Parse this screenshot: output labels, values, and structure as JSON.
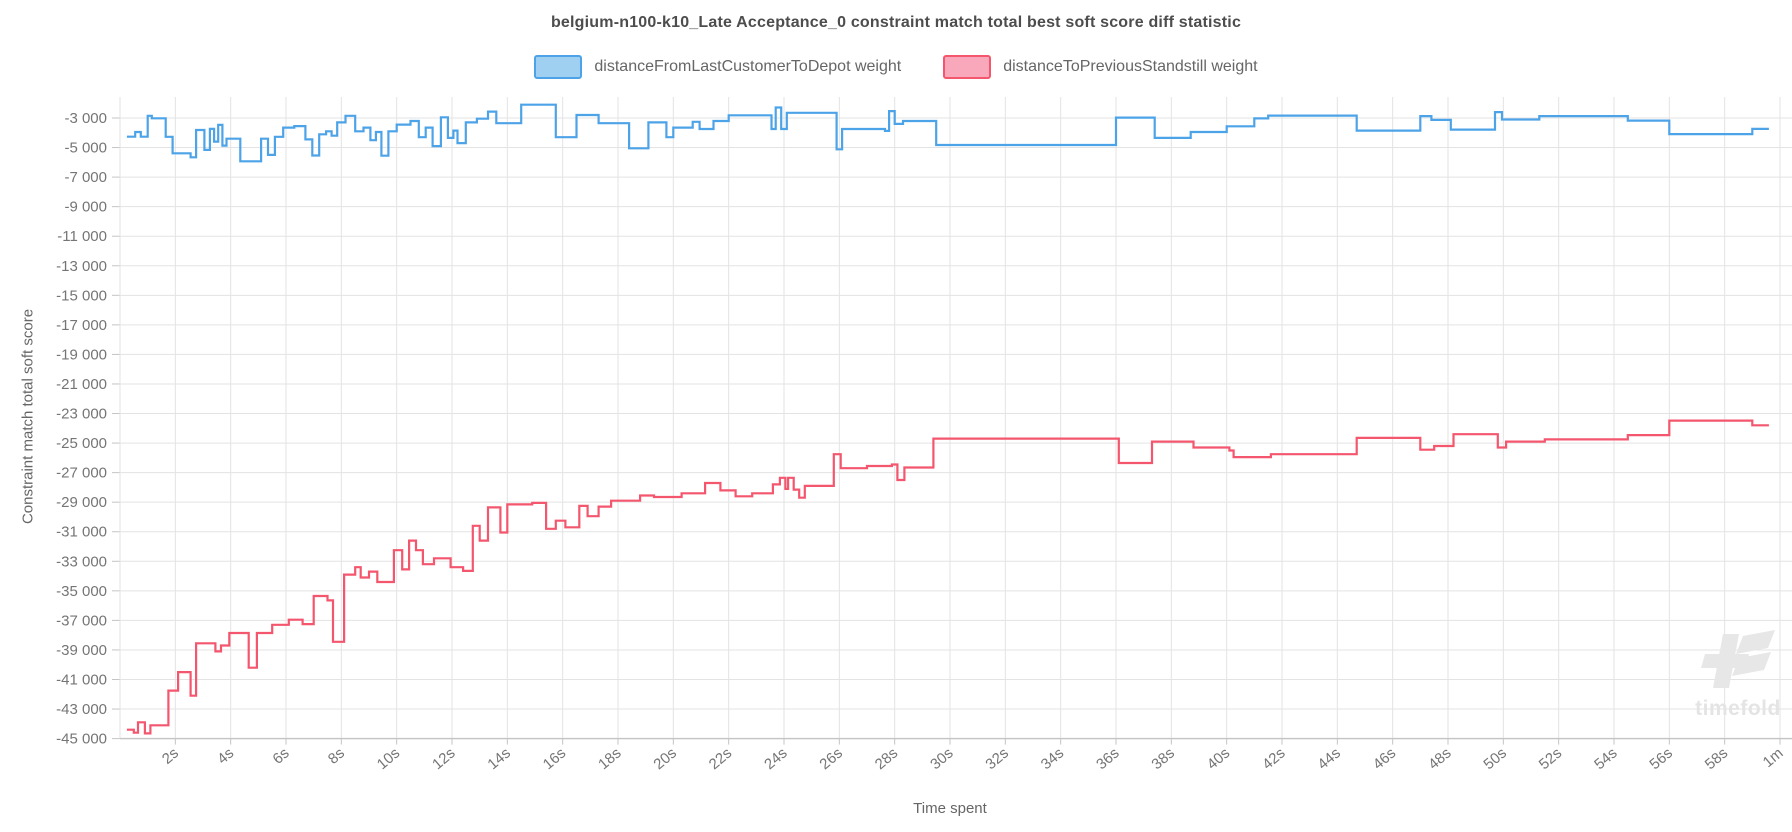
{
  "title": "belgium-n100-k10_Late Acceptance_0 constraint match total best soft score diff statistic",
  "legend": {
    "items": [
      {
        "label": "distanceFromLastCustomerToDepot weight",
        "fill": "#9fd0f2",
        "stroke": "#4da3e8"
      },
      {
        "label": "distanceToPreviousStandstill weight",
        "fill": "#f9a8bc",
        "stroke": "#f4566e"
      }
    ]
  },
  "axes": {
    "x_label": "Time spent",
    "y_label": "Constraint match total soft score",
    "x_ticks": [
      {
        "t": 2,
        "label": "2s"
      },
      {
        "t": 4,
        "label": "4s"
      },
      {
        "t": 6,
        "label": "6s"
      },
      {
        "t": 8,
        "label": "8s"
      },
      {
        "t": 10,
        "label": "10s"
      },
      {
        "t": 12,
        "label": "12s"
      },
      {
        "t": 14,
        "label": "14s"
      },
      {
        "t": 16,
        "label": "16s"
      },
      {
        "t": 18,
        "label": "18s"
      },
      {
        "t": 20,
        "label": "20s"
      },
      {
        "t": 22,
        "label": "22s"
      },
      {
        "t": 24,
        "label": "24s"
      },
      {
        "t": 26,
        "label": "26s"
      },
      {
        "t": 28,
        "label": "28s"
      },
      {
        "t": 30,
        "label": "30s"
      },
      {
        "t": 32,
        "label": "32s"
      },
      {
        "t": 34,
        "label": "34s"
      },
      {
        "t": 36,
        "label": "36s"
      },
      {
        "t": 38,
        "label": "38s"
      },
      {
        "t": 40,
        "label": "40s"
      },
      {
        "t": 42,
        "label": "42s"
      },
      {
        "t": 44,
        "label": "44s"
      },
      {
        "t": 46,
        "label": "46s"
      },
      {
        "t": 48,
        "label": "48s"
      },
      {
        "t": 50,
        "label": "50s"
      },
      {
        "t": 52,
        "label": "52s"
      },
      {
        "t": 54,
        "label": "54s"
      },
      {
        "t": 56,
        "label": "56s"
      },
      {
        "t": 58,
        "label": "58s"
      },
      {
        "t": 60,
        "label": "1m"
      }
    ],
    "y_ticks": [
      {
        "v": -3000,
        "label": "-3 000"
      },
      {
        "v": -5000,
        "label": "-5 000"
      },
      {
        "v": -7000,
        "label": "-7 000"
      },
      {
        "v": -9000,
        "label": "-9 000"
      },
      {
        "v": -11000,
        "label": "-11 000"
      },
      {
        "v": -13000,
        "label": "-13 000"
      },
      {
        "v": -15000,
        "label": "-15 000"
      },
      {
        "v": -17000,
        "label": "-17 000"
      },
      {
        "v": -19000,
        "label": "-19 000"
      },
      {
        "v": -21000,
        "label": "-21 000"
      },
      {
        "v": -23000,
        "label": "-23 000"
      },
      {
        "v": -25000,
        "label": "-25 000"
      },
      {
        "v": -27000,
        "label": "-27 000"
      },
      {
        "v": -29000,
        "label": "-29 000"
      },
      {
        "v": -31000,
        "label": "-31 000"
      },
      {
        "v": -33000,
        "label": "-33 000"
      },
      {
        "v": -35000,
        "label": "-35 000"
      },
      {
        "v": -37000,
        "label": "-37 000"
      },
      {
        "v": -39000,
        "label": "-39 000"
      },
      {
        "v": -41000,
        "label": "-41 000"
      },
      {
        "v": -43000,
        "label": "-43 000"
      },
      {
        "v": -45000,
        "label": "-45 000"
      }
    ]
  },
  "watermark": {
    "text": "timefold"
  },
  "colors": {
    "grid": "#e3e3e3",
    "axis": "#c4c4c4",
    "tick_text": "#757575",
    "blue_line": "#4da3e8",
    "pink_line": "#f4566e",
    "watermark": "#e7e7e7"
  },
  "chart_data": {
    "type": "line",
    "step": true,
    "title": "belgium-n100-k10_Late Acceptance_0 constraint match total best soft score diff statistic",
    "xlabel": "Time spent",
    "ylabel": "Constraint match total soft score",
    "x_unit": "seconds",
    "xlim": [
      0,
      60.5
    ],
    "ylim": [
      -45700,
      -1900
    ],
    "grid": true,
    "legend_position": "top-center",
    "t_end": 59.6,
    "series": [
      {
        "name": "distanceFromLastCustomerToDepot weight",
        "color": "#4da3e8",
        "points": [
          [
            0.25,
            -4265
          ],
          [
            0.55,
            -3950
          ],
          [
            0.75,
            -4265
          ],
          [
            1.0,
            -2850
          ],
          [
            1.15,
            -3020
          ],
          [
            1.65,
            -4270
          ],
          [
            1.9,
            -5390
          ],
          [
            2.55,
            -5660
          ],
          [
            2.75,
            -3810
          ],
          [
            3.05,
            -5160
          ],
          [
            3.25,
            -3740
          ],
          [
            3.4,
            -4600
          ],
          [
            3.55,
            -3470
          ],
          [
            3.7,
            -4870
          ],
          [
            3.85,
            -4400
          ],
          [
            4.35,
            -5930
          ],
          [
            5.1,
            -4400
          ],
          [
            5.35,
            -5500
          ],
          [
            5.6,
            -4270
          ],
          [
            5.9,
            -3650
          ],
          [
            6.3,
            -3550
          ],
          [
            6.7,
            -4450
          ],
          [
            6.95,
            -5540
          ],
          [
            7.2,
            -4100
          ],
          [
            7.45,
            -3900
          ],
          [
            7.65,
            -4200
          ],
          [
            7.85,
            -3300
          ],
          [
            8.15,
            -2850
          ],
          [
            8.5,
            -3900
          ],
          [
            8.8,
            -3650
          ],
          [
            9.05,
            -4500
          ],
          [
            9.25,
            -3950
          ],
          [
            9.45,
            -5550
          ],
          [
            9.7,
            -3900
          ],
          [
            10.0,
            -3450
          ],
          [
            10.5,
            -3200
          ],
          [
            10.8,
            -4300
          ],
          [
            11.05,
            -3650
          ],
          [
            11.3,
            -4900
          ],
          [
            11.6,
            -2950
          ],
          [
            11.85,
            -4350
          ],
          [
            12.05,
            -3850
          ],
          [
            12.2,
            -4700
          ],
          [
            12.5,
            -3300
          ],
          [
            12.9,
            -3050
          ],
          [
            13.3,
            -2570
          ],
          [
            13.6,
            -3350
          ],
          [
            14.5,
            -2100
          ],
          [
            15.75,
            -4300
          ],
          [
            16.5,
            -2800
          ],
          [
            17.3,
            -3350
          ],
          [
            18.4,
            -5050
          ],
          [
            19.1,
            -3300
          ],
          [
            19.75,
            -4300
          ],
          [
            20.0,
            -3650
          ],
          [
            20.7,
            -3260
          ],
          [
            20.95,
            -3745
          ],
          [
            21.45,
            -3200
          ],
          [
            22.0,
            -2820
          ],
          [
            23.55,
            -3745
          ],
          [
            23.7,
            -2290
          ],
          [
            23.9,
            -3745
          ],
          [
            24.1,
            -2650
          ],
          [
            25.9,
            -5120
          ],
          [
            26.1,
            -3745
          ],
          [
            27.65,
            -3870
          ],
          [
            27.8,
            -2530
          ],
          [
            28.0,
            -3400
          ],
          [
            28.3,
            -3200
          ],
          [
            29.5,
            -4830
          ],
          [
            36.0,
            -2970
          ],
          [
            37.4,
            -4350
          ],
          [
            38.7,
            -3945
          ],
          [
            40.0,
            -3560
          ],
          [
            41.0,
            -3030
          ],
          [
            41.5,
            -2840
          ],
          [
            44.7,
            -3855
          ],
          [
            47.0,
            -2870
          ],
          [
            47.4,
            -3130
          ],
          [
            48.1,
            -3785
          ],
          [
            49.7,
            -2600
          ],
          [
            49.95,
            -3100
          ],
          [
            51.3,
            -2870
          ],
          [
            54.5,
            -3175
          ],
          [
            56.0,
            -4090
          ],
          [
            59.0,
            -3735
          ]
        ]
      },
      {
        "name": "distanceToPreviousStandstill weight",
        "color": "#f4566e",
        "points": [
          [
            0.25,
            -44400
          ],
          [
            0.5,
            -44600
          ],
          [
            0.65,
            -43900
          ],
          [
            0.9,
            -44650
          ],
          [
            1.1,
            -44100
          ],
          [
            1.75,
            -41750
          ],
          [
            2.1,
            -40500
          ],
          [
            2.55,
            -42100
          ],
          [
            2.75,
            -38550
          ],
          [
            3.45,
            -39100
          ],
          [
            3.65,
            -38700
          ],
          [
            3.95,
            -37850
          ],
          [
            4.65,
            -40200
          ],
          [
            4.95,
            -37850
          ],
          [
            5.5,
            -37300
          ],
          [
            6.1,
            -36950
          ],
          [
            6.6,
            -37250
          ],
          [
            7.0,
            -35350
          ],
          [
            7.5,
            -35650
          ],
          [
            7.7,
            -38450
          ],
          [
            8.1,
            -33900
          ],
          [
            8.5,
            -33400
          ],
          [
            8.7,
            -34100
          ],
          [
            9.0,
            -33700
          ],
          [
            9.3,
            -34400
          ],
          [
            9.9,
            -32250
          ],
          [
            10.2,
            -33550
          ],
          [
            10.45,
            -31600
          ],
          [
            10.7,
            -32250
          ],
          [
            10.95,
            -33200
          ],
          [
            11.35,
            -32800
          ],
          [
            11.95,
            -33400
          ],
          [
            12.4,
            -33650
          ],
          [
            12.75,
            -30600
          ],
          [
            13.0,
            -31600
          ],
          [
            13.3,
            -29350
          ],
          [
            13.75,
            -31050
          ],
          [
            14.0,
            -29150
          ],
          [
            14.9,
            -29050
          ],
          [
            15.4,
            -30800
          ],
          [
            15.75,
            -30250
          ],
          [
            16.1,
            -30700
          ],
          [
            16.6,
            -29250
          ],
          [
            16.9,
            -29950
          ],
          [
            17.3,
            -29300
          ],
          [
            17.75,
            -28900
          ],
          [
            18.8,
            -28550
          ],
          [
            19.3,
            -28650
          ],
          [
            20.3,
            -28400
          ],
          [
            21.15,
            -27700
          ],
          [
            21.7,
            -28200
          ],
          [
            22.25,
            -28600
          ],
          [
            22.85,
            -28400
          ],
          [
            23.6,
            -27800
          ],
          [
            23.85,
            -27350
          ],
          [
            24.05,
            -28100
          ],
          [
            24.15,
            -27350
          ],
          [
            24.35,
            -28150
          ],
          [
            24.55,
            -28700
          ],
          [
            24.75,
            -27900
          ],
          [
            25.8,
            -25750
          ],
          [
            26.05,
            -26700
          ],
          [
            27.0,
            -26550
          ],
          [
            27.9,
            -26450
          ],
          [
            28.1,
            -27500
          ],
          [
            28.35,
            -26650
          ],
          [
            29.4,
            -24700
          ],
          [
            36.1,
            -26350
          ],
          [
            37.3,
            -24900
          ],
          [
            38.8,
            -25300
          ],
          [
            40.1,
            -25500
          ],
          [
            40.25,
            -25950
          ],
          [
            41.6,
            -25750
          ],
          [
            44.7,
            -24650
          ],
          [
            47.0,
            -25450
          ],
          [
            47.5,
            -25200
          ],
          [
            48.2,
            -24400
          ],
          [
            49.8,
            -25300
          ],
          [
            50.1,
            -24900
          ],
          [
            51.5,
            -24750
          ],
          [
            54.5,
            -24460
          ],
          [
            56.0,
            -23480
          ],
          [
            59.0,
            -23800
          ]
        ]
      }
    ]
  }
}
